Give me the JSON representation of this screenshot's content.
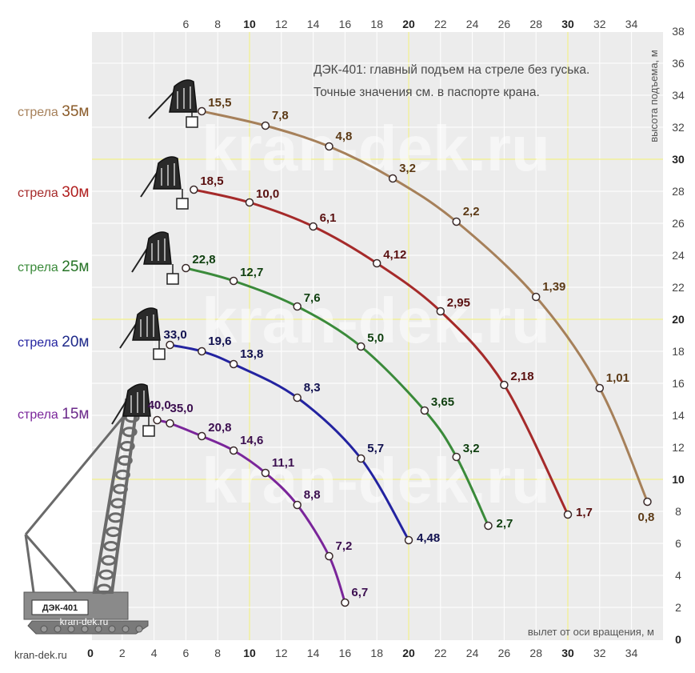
{
  "chart_data": {
    "type": "line",
    "title": "ДЭК-401: главный подъем на стреле без гуська.",
    "subtitle": "Точные значения см. в паспорте крана.",
    "xlabel": "вылет от оси вращения, м",
    "ylabel": "высота подъема, м",
    "xlim": [
      0,
      35.5
    ],
    "ylim": [
      0,
      38
    ],
    "x_ticks": [
      0,
      2,
      4,
      6,
      8,
      10,
      12,
      14,
      16,
      18,
      20,
      22,
      24,
      26,
      28,
      30,
      32,
      34
    ],
    "y_ticks": [
      0,
      2,
      4,
      6,
      8,
      10,
      12,
      14,
      16,
      18,
      20,
      22,
      24,
      26,
      28,
      30,
      32,
      34,
      36,
      38
    ],
    "bold_ticks": [
      0,
      10,
      20,
      30
    ],
    "grid": true,
    "series": [
      {
        "name": "стрела 35м",
        "prefix": "стрела ",
        "boom": "35м",
        "color": "#a6805a",
        "label_color": "#5c3a16",
        "boom_color": "#8a5a28",
        "points": [
          {
            "x": 7,
            "y": 33.0,
            "load": "15,5"
          },
          {
            "x": 11,
            "y": 32.1,
            "load": "7,8"
          },
          {
            "x": 15,
            "y": 30.8,
            "load": "4,8"
          },
          {
            "x": 19,
            "y": 28.8,
            "load": "3,2"
          },
          {
            "x": 23,
            "y": 26.1,
            "load": "2,2"
          },
          {
            "x": 28,
            "y": 21.4,
            "load": "1,39"
          },
          {
            "x": 32,
            "y": 15.7,
            "load": "1,01"
          },
          {
            "x": 35,
            "y": 8.6,
            "load": "0,8"
          }
        ]
      },
      {
        "name": "стрела 30м",
        "prefix": "стрела ",
        "boom": "30м",
        "color": "#a52a2a",
        "label_color": "#5a1010",
        "boom_color": "#b01e1e",
        "points": [
          {
            "x": 6.5,
            "y": 28.1,
            "load": "18,5"
          },
          {
            "x": 10,
            "y": 27.3,
            "load": "10,0"
          },
          {
            "x": 14,
            "y": 25.8,
            "load": "6,1"
          },
          {
            "x": 18,
            "y": 23.5,
            "load": "4,12"
          },
          {
            "x": 22,
            "y": 20.5,
            "load": "2,95"
          },
          {
            "x": 26,
            "y": 15.9,
            "load": "2,18"
          },
          {
            "x": 30,
            "y": 7.8,
            "load": "1,7"
          }
        ]
      },
      {
        "name": "стрела 25м",
        "prefix": "стрела ",
        "boom": "25м",
        "color": "#3a8a3a",
        "label_color": "#0f3f0f",
        "boom_color": "#267326",
        "points": [
          {
            "x": 6,
            "y": 23.2,
            "load": "22,8"
          },
          {
            "x": 9,
            "y": 22.4,
            "load": "12,7"
          },
          {
            "x": 13,
            "y": 20.8,
            "load": "7,6"
          },
          {
            "x": 17,
            "y": 18.3,
            "load": "5,0"
          },
          {
            "x": 21,
            "y": 14.3,
            "load": "3,65"
          },
          {
            "x": 23,
            "y": 11.4,
            "load": "3,2"
          },
          {
            "x": 25,
            "y": 7.1,
            "load": "2,7"
          }
        ]
      },
      {
        "name": "стрела 20м",
        "prefix": "стрела ",
        "boom": "20м",
        "color": "#2323a0",
        "label_color": "#121250",
        "boom_color": "#1f2a8a",
        "points": [
          {
            "x": 5,
            "y": 18.4,
            "load": "33,0"
          },
          {
            "x": 7,
            "y": 18.0,
            "load": "19,6"
          },
          {
            "x": 9,
            "y": 17.2,
            "load": "13,8"
          },
          {
            "x": 13,
            "y": 15.1,
            "load": "8,3"
          },
          {
            "x": 17,
            "y": 11.3,
            "load": "5,7"
          },
          {
            "x": 20,
            "y": 6.2,
            "load": "4,48"
          }
        ]
      },
      {
        "name": "стрела 15м",
        "prefix": "стрела ",
        "boom": "15м",
        "color": "#7a259a",
        "label_color": "#3c0f50",
        "boom_color": "#6b2a8a",
        "points": [
          {
            "x": 4.2,
            "y": 13.7,
            "load": "40,0"
          },
          {
            "x": 5,
            "y": 13.5,
            "load": "35,0"
          },
          {
            "x": 7,
            "y": 12.7,
            "load": "20,8"
          },
          {
            "x": 9,
            "y": 11.8,
            "load": "14,6"
          },
          {
            "x": 11,
            "y": 10.4,
            "load": "11,1"
          },
          {
            "x": 13,
            "y": 8.4,
            "load": "8,8"
          },
          {
            "x": 15,
            "y": 5.2,
            "load": "7,2"
          },
          {
            "x": 16,
            "y": 2.3,
            "load": "6,7"
          }
        ]
      }
    ]
  },
  "watermark": "kran-dek.ru",
  "site_label": "kran-dek.ru",
  "crane_badge": "ДЭК-401",
  "crane_caption": "kran-dek.ru",
  "colors": {
    "plot_bg": "#ececec",
    "grid": "#ffffff",
    "grid_major": "#f2f09a",
    "marker_fill": "#ffffff",
    "crane": "#6a6a6a"
  }
}
